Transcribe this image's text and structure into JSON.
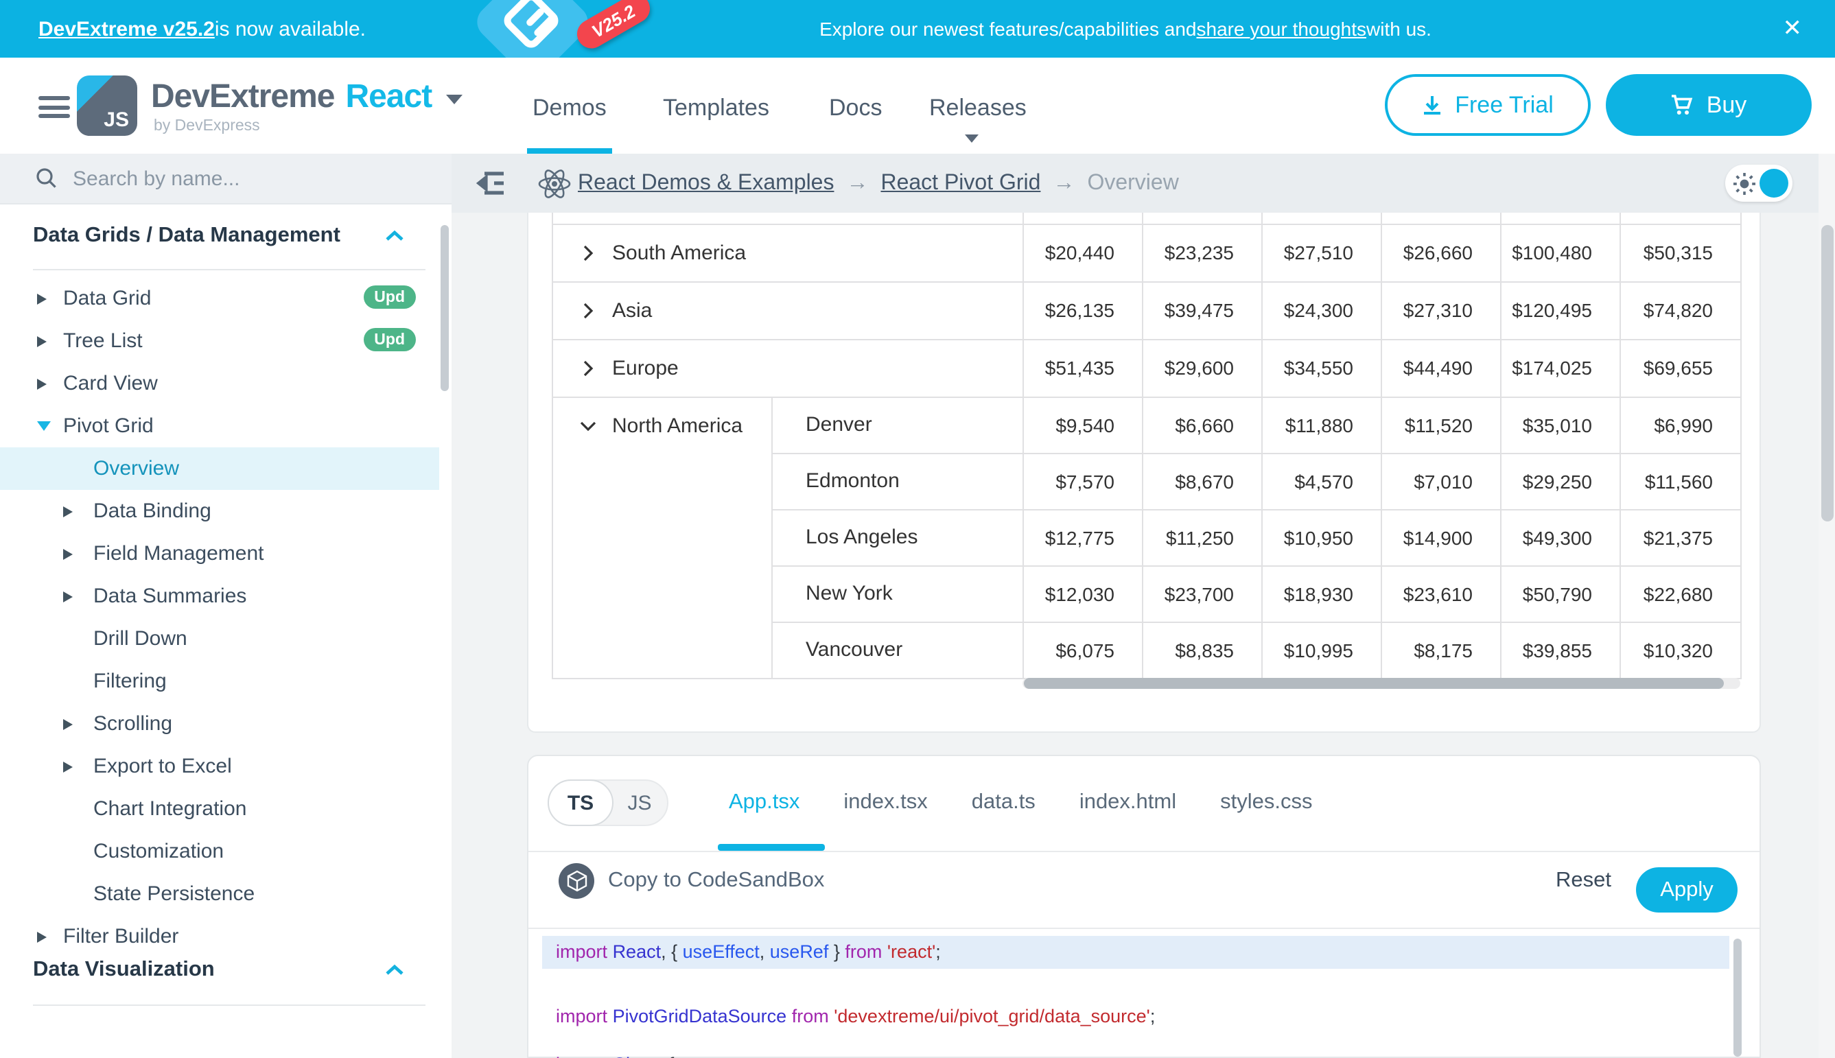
{
  "banner": {
    "link": "DevExtreme v25.2",
    "suffix": " is now available.",
    "badge": "V25.2",
    "message_prefix": "Explore our newest features/capabilities and ",
    "message_link": "share your thoughts",
    "message_suffix": " with us.",
    "close": "✕"
  },
  "header": {
    "brand": "DevExtreme",
    "brand_sub": "by DevExpress",
    "framework": "React",
    "nav": [
      "Demos",
      "Templates",
      "Docs",
      "Releases"
    ],
    "active_nav": "Demos",
    "free_trial": "Free Trial",
    "buy": "Buy"
  },
  "sidebar": {
    "search_placeholder": "Search by name...",
    "section1": "Data Grids / Data Management",
    "section2": "Data Visualization",
    "items": [
      {
        "label": "Data Grid",
        "arrow": "right",
        "badge": "Upd",
        "level": 0
      },
      {
        "label": "Tree List",
        "arrow": "right",
        "badge": "Upd",
        "level": 0
      },
      {
        "label": "Card View",
        "arrow": "right",
        "level": 0
      },
      {
        "label": "Pivot Grid",
        "arrow": "down",
        "level": 0
      },
      {
        "label": "Overview",
        "level": 1,
        "selected": true
      },
      {
        "label": "Data Binding",
        "arrow": "right",
        "level": 1
      },
      {
        "label": "Field Management",
        "arrow": "right",
        "level": 1
      },
      {
        "label": "Data Summaries",
        "arrow": "right",
        "level": 1
      },
      {
        "label": "Drill Down",
        "level": 1
      },
      {
        "label": "Filtering",
        "level": 1
      },
      {
        "label": "Scrolling",
        "arrow": "right",
        "level": 1
      },
      {
        "label": "Export to Excel",
        "arrow": "right",
        "level": 1
      },
      {
        "label": "Chart Integration",
        "level": 1
      },
      {
        "label": "Customization",
        "level": 1
      },
      {
        "label": "State Persistence",
        "level": 1
      },
      {
        "label": "Filter Builder",
        "arrow": "right",
        "level": 0
      }
    ]
  },
  "breadcrumb": {
    "separator": "→",
    "items": [
      {
        "label": "React Demos & Examples",
        "link": true
      },
      {
        "label": "React Pivot Grid",
        "link": true
      },
      {
        "label": "Overview",
        "link": false
      }
    ]
  },
  "pivot_table": {
    "rows": [
      {
        "region": "South America",
        "expanded": false,
        "values": [
          "$20,440",
          "$23,235",
          "$27,510",
          "$26,660",
          "$100,480",
          "$50,315"
        ]
      },
      {
        "region": "Asia",
        "expanded": false,
        "values": [
          "$26,135",
          "$39,475",
          "$24,300",
          "$27,310",
          "$120,495",
          "$74,820"
        ]
      },
      {
        "region": "Europe",
        "expanded": false,
        "values": [
          "$51,435",
          "$29,600",
          "$34,550",
          "$44,490",
          "$174,025",
          "$69,655"
        ]
      },
      {
        "region": "North America",
        "expanded": true,
        "cities": [
          {
            "name": "Denver",
            "values": [
              "$9,540",
              "$6,660",
              "$11,880",
              "$11,520",
              "$35,010",
              "$6,990"
            ]
          },
          {
            "name": "Edmonton",
            "values": [
              "$7,570",
              "$8,670",
              "$4,570",
              "$7,010",
              "$29,250",
              "$11,560"
            ]
          },
          {
            "name": "Los Angeles",
            "values": [
              "$12,775",
              "$11,250",
              "$10,950",
              "$14,900",
              "$49,300",
              "$21,375"
            ]
          },
          {
            "name": "New York",
            "values": [
              "$12,030",
              "$23,700",
              "$18,930",
              "$23,610",
              "$50,790",
              "$22,680"
            ]
          },
          {
            "name": "Vancouver",
            "values": [
              "$6,075",
              "$8,835",
              "$10,995",
              "$8,175",
              "$39,855",
              "$10,320"
            ]
          }
        ]
      }
    ]
  },
  "code": {
    "toggle": [
      "TS",
      "JS"
    ],
    "active_toggle": "TS",
    "tabs": [
      "App.tsx",
      "index.tsx",
      "data.ts",
      "index.html",
      "styles.css"
    ],
    "active_tab": "App.tsx",
    "copy_label": "Copy to CodeSandBox",
    "reset_label": "Reset",
    "apply_label": "Apply",
    "lines": [
      [
        {
          "t": "import",
          "c": "kw"
        },
        {
          "t": " ",
          "c": "pl"
        },
        {
          "t": "React",
          "c": "id"
        },
        {
          "t": ", { ",
          "c": "pl"
        },
        {
          "t": "useEffect",
          "c": "fn"
        },
        {
          "t": ", ",
          "c": "pl"
        },
        {
          "t": "useRef",
          "c": "fn"
        },
        {
          "t": " } ",
          "c": "pl"
        },
        {
          "t": "from",
          "c": "kw"
        },
        {
          "t": " ",
          "c": "pl"
        },
        {
          "t": "'react'",
          "c": "str"
        },
        {
          "t": ";",
          "c": "pl"
        }
      ],
      [
        {
          "t": "import",
          "c": "kw"
        },
        {
          "t": " ",
          "c": "pl"
        },
        {
          "t": "PivotGridDataSource",
          "c": "id"
        },
        {
          "t": " ",
          "c": "pl"
        },
        {
          "t": "from",
          "c": "kw"
        },
        {
          "t": " ",
          "c": "pl"
        },
        {
          "t": "'devextreme/ui/pivot_grid/data_source'",
          "c": "str"
        },
        {
          "t": ";",
          "c": "pl"
        }
      ],
      [
        {
          "t": "import",
          "c": "kw"
        },
        {
          "t": " ",
          "c": "pl"
        },
        {
          "t": "Chart",
          "c": "id"
        },
        {
          "t": ", {",
          "c": "pl"
        }
      ]
    ]
  },
  "colors": {
    "accent": "#0db3e3",
    "banner_bg": "#0cb2e2",
    "badge_green": "#4db588",
    "selected_bg": "#e2f4fa",
    "code_highlight": "#e2edf9"
  }
}
